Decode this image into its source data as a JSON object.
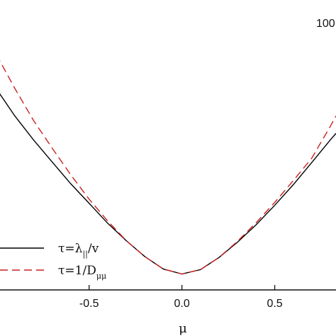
{
  "chart_data": {
    "type": "line",
    "title": "",
    "corner_label": "100",
    "xlabel": "μ",
    "ylabel": "",
    "xlim": [
      -0.98,
      0.83
    ],
    "ylim": [
      0,
      1
    ],
    "x_ticks": [
      -0.5,
      0.0,
      0.5
    ],
    "x_tick_labels": [
      "-0.5",
      "0.0",
      "0.5"
    ],
    "series": [
      {
        "label_main": "τ=λ",
        "label_sub": "||",
        "label_tail": "/v",
        "color": "#000000",
        "dash": "solid",
        "x": [
          -1.0,
          -0.9,
          -0.8,
          -0.7,
          -0.6,
          -0.5,
          -0.4,
          -0.3,
          -0.2,
          -0.1,
          0.0,
          0.1,
          0.2,
          0.3,
          0.4,
          0.5,
          0.6,
          0.7,
          0.8,
          0.83
        ],
        "y": [
          0.694,
          0.6,
          0.518,
          0.442,
          0.367,
          0.299,
          0.23,
          0.17,
          0.115,
          0.072,
          0.055,
          0.07,
          0.112,
          0.165,
          0.225,
          0.292,
          0.363,
          0.44,
          0.518,
          0.54
        ]
      },
      {
        "label_main": "τ=1/D",
        "label_sub": "μμ",
        "label_tail": "",
        "color": "#cc1f1f",
        "dash": "dashed",
        "x": [
          -1.0,
          -0.9,
          -0.8,
          -0.7,
          -0.6,
          -0.5,
          -0.4,
          -0.3,
          -0.2,
          -0.1,
          0.0,
          0.1,
          0.2,
          0.3,
          0.4,
          0.5,
          0.6,
          0.7,
          0.8,
          0.83
        ],
        "y": [
          0.812,
          0.695,
          0.585,
          0.49,
          0.398,
          0.313,
          0.238,
          0.17,
          0.115,
          0.072,
          0.055,
          0.07,
          0.112,
          0.168,
          0.232,
          0.302,
          0.377,
          0.455,
          0.565,
          0.6
        ]
      }
    ]
  }
}
